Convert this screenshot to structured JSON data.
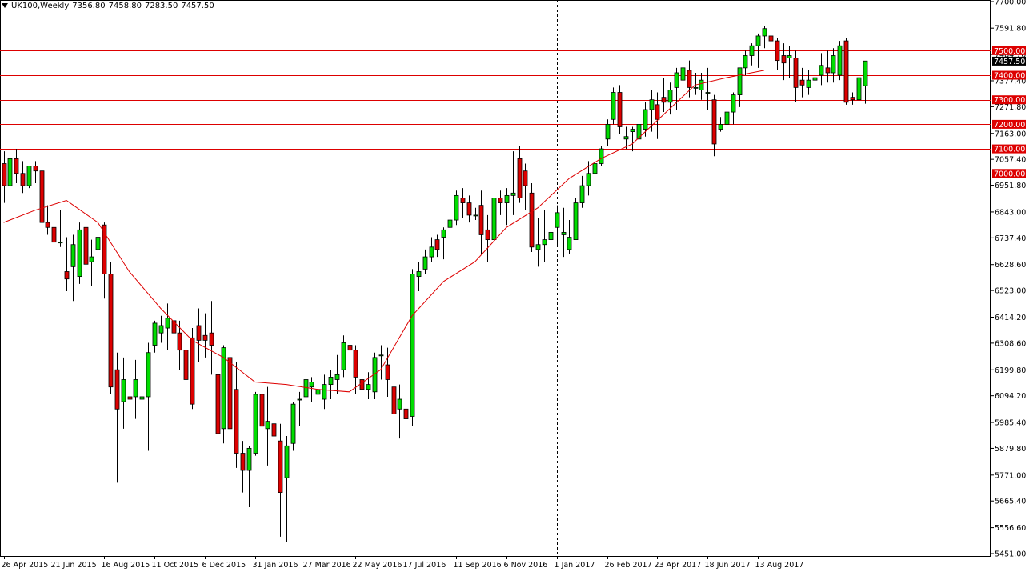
{
  "header": {
    "symbol": "UK100,Weekly",
    "open": "7356.80",
    "high": "7458.80",
    "low": "7283.50",
    "close": "7457.50"
  },
  "colors": {
    "background": "#ffffff",
    "bull": "#00dd00",
    "bear": "#dd0000",
    "wick": "#000000",
    "level_line": "#dd0000",
    "ma_line": "#dd0000",
    "current_price_bg": "#000000"
  },
  "chart_data": {
    "type": "candlestick",
    "timeframe": "Weekly",
    "ylim": [
      5451.0,
      7700.0
    ],
    "y_ticks": [
      "7700.00",
      "7591.80",
      "7484.70",
      "7377.40",
      "7271.80",
      "7163.00",
      "7057.40",
      "6951.80",
      "6843.00",
      "6737.40",
      "6628.60",
      "6523.00",
      "6414.20",
      "6308.60",
      "6199.80",
      "6094.20",
      "5985.40",
      "5879.80",
      "5771.00",
      "5665.40",
      "5556.60",
      "5451.00"
    ],
    "x_labels": [
      {
        "i": 0,
        "text": "26 Apr 2015"
      },
      {
        "i": 8,
        "text": "21 Jun 2015"
      },
      {
        "i": 16,
        "text": "16 Aug 2015"
      },
      {
        "i": 24,
        "text": "11 Oct 2015"
      },
      {
        "i": 32,
        "text": "6 Dec 2015"
      },
      {
        "i": 40,
        "text": "31 Jan 2016"
      },
      {
        "i": 48,
        "text": "27 Mar 2016"
      },
      {
        "i": 56,
        "text": "22 May 2016"
      },
      {
        "i": 64,
        "text": "17 Jul 2016"
      },
      {
        "i": 72,
        "text": "11 Sep 2016"
      },
      {
        "i": 80,
        "text": "6 Nov 2016"
      },
      {
        "i": 88,
        "text": "1 Jan 2017"
      },
      {
        "i": 96,
        "text": "26 Feb 2017"
      },
      {
        "i": 104,
        "text": "23 Apr 2017"
      },
      {
        "i": 112,
        "text": "18 Jun 2017"
      },
      {
        "i": 120,
        "text": "13 Aug 2017"
      }
    ],
    "period_separators": [
      36,
      88
    ],
    "levels": [
      {
        "value": 7500.0,
        "label": "7500.00"
      },
      {
        "value": 7400.0,
        "label": "7400.00"
      },
      {
        "value": 7300.0,
        "label": "7300.00"
      },
      {
        "value": 7200.0,
        "label": "7200.00"
      },
      {
        "value": 7100.0,
        "label": "7100.00"
      },
      {
        "value": 7000.0,
        "label": "7000.00"
      }
    ],
    "current_price": {
      "value": 7457.5,
      "label": "7457.50"
    },
    "moving_average": {
      "points": [
        [
          0,
          6800
        ],
        [
          5,
          6850
        ],
        [
          10,
          6890
        ],
        [
          15,
          6800
        ],
        [
          20,
          6600
        ],
        [
          25,
          6450
        ],
        [
          30,
          6320
        ],
        [
          35,
          6250
        ],
        [
          40,
          6150
        ],
        [
          45,
          6140
        ],
        [
          50,
          6120
        ],
        [
          55,
          6110
        ],
        [
          60,
          6200
        ],
        [
          65,
          6420
        ],
        [
          70,
          6560
        ],
        [
          75,
          6640
        ],
        [
          80,
          6780
        ],
        [
          85,
          6860
        ],
        [
          90,
          6980
        ],
        [
          95,
          7060
        ],
        [
          100,
          7120
        ],
        [
          105,
          7240
        ],
        [
          110,
          7360
        ],
        [
          115,
          7390
        ],
        [
          121,
          7420
        ]
      ]
    },
    "candles": [
      [
        7040,
        7090,
        6880,
        6950
      ],
      [
        6950,
        7080,
        6870,
        7060
      ],
      [
        7060,
        7100,
        6960,
        7000
      ],
      [
        7000,
        7050,
        6920,
        6950
      ],
      [
        6950,
        7030,
        6940,
        7030
      ],
      [
        7030,
        7050,
        6960,
        7010
      ],
      [
        7010,
        7030,
        6750,
        6800
      ],
      [
        6800,
        6870,
        6750,
        6780
      ],
      [
        6780,
        6840,
        6690,
        6720
      ],
      [
        6720,
        6850,
        6700,
        6720
      ],
      [
        6600,
        6740,
        6520,
        6570
      ],
      [
        6620,
        6750,
        6480,
        6710
      ],
      [
        6580,
        6800,
        6550,
        6770
      ],
      [
        6780,
        6840,
        6570,
        6630
      ],
      [
        6640,
        6730,
        6540,
        6660
      ],
      [
        6690,
        6780,
        6550,
        6740
      ],
      [
        6790,
        6800,
        6490,
        6590
      ],
      [
        6590,
        6640,
        6100,
        6130
      ],
      [
        6200,
        6270,
        5740,
        6040
      ],
      [
        6070,
        6250,
        5960,
        6160
      ],
      [
        6090,
        6300,
        5920,
        6080
      ],
      [
        6090,
        6240,
        6000,
        6160
      ],
      [
        6080,
        6250,
        5890,
        6090
      ],
      [
        6090,
        6310,
        5870,
        6270
      ],
      [
        6300,
        6400,
        6270,
        6390
      ],
      [
        6350,
        6420,
        6310,
        6380
      ],
      [
        6370,
        6470,
        6280,
        6410
      ],
      [
        6400,
        6470,
        6320,
        6350
      ],
      [
        6350,
        6400,
        6200,
        6280
      ],
      [
        6280,
        6350,
        6110,
        6160
      ],
      [
        6330,
        6370,
        6040,
        6060
      ],
      [
        6380,
        6450,
        6230,
        6320
      ],
      [
        6340,
        6430,
        6250,
        6320
      ],
      [
        6350,
        6480,
        6180,
        6300
      ],
      [
        6180,
        6230,
        5900,
        5940
      ],
      [
        5960,
        6300,
        5900,
        6290
      ],
      [
        6250,
        6300,
        5870,
        5960
      ],
      [
        6120,
        6230,
        5800,
        5860
      ],
      [
        5860,
        5910,
        5700,
        5790
      ],
      [
        5790,
        5890,
        5640,
        5880
      ],
      [
        5860,
        6110,
        5850,
        6100
      ],
      [
        6100,
        6110,
        5890,
        5970
      ],
      [
        5960,
        6130,
        5810,
        5990
      ],
      [
        5980,
        6060,
        5870,
        5930
      ],
      [
        5910,
        5980,
        5520,
        5700
      ],
      [
        5760,
        5930,
        5500,
        5890
      ],
      [
        5900,
        6070,
        5870,
        6060
      ],
      [
        6080,
        6110,
        5970,
        6080
      ],
      [
        6090,
        6180,
        6060,
        6160
      ],
      [
        6130,
        6170,
        6070,
        6150
      ],
      [
        6100,
        6190,
        6080,
        6120
      ],
      [
        6080,
        6180,
        6040,
        6140
      ],
      [
        6140,
        6200,
        6080,
        6170
      ],
      [
        6160,
        6260,
        6100,
        6180
      ],
      [
        6200,
        6340,
        6170,
        6310
      ],
      [
        6300,
        6380,
        6150,
        6280
      ],
      [
        6280,
        6300,
        6100,
        6170
      ],
      [
        6160,
        6230,
        6080,
        6120
      ],
      [
        6120,
        6190,
        6080,
        6140
      ],
      [
        6110,
        6270,
        6080,
        6250
      ],
      [
        6260,
        6300,
        6160,
        6260
      ],
      [
        6220,
        6290,
        6090,
        6160
      ],
      [
        6130,
        6170,
        5950,
        6020
      ],
      [
        6040,
        6140,
        5920,
        6080
      ],
      [
        6040,
        6210,
        5940,
        6000
      ],
      [
        6010,
        6610,
        5970,
        6590
      ],
      [
        6580,
        6640,
        6520,
        6600
      ],
      [
        6610,
        6690,
        6590,
        6660
      ],
      [
        6660,
        6740,
        6640,
        6700
      ],
      [
        6730,
        6750,
        6660,
        6690
      ],
      [
        6740,
        6780,
        6650,
        6770
      ],
      [
        6780,
        6850,
        6730,
        6810
      ],
      [
        6810,
        6930,
        6790,
        6910
      ],
      [
        6900,
        6940,
        6820,
        6880
      ],
      [
        6880,
        6910,
        6800,
        6830
      ],
      [
        6830,
        6860,
        6810,
        6830
      ],
      [
        6870,
        6930,
        6670,
        6750
      ],
      [
        6770,
        6830,
        6640,
        6730
      ],
      [
        6730,
        6900,
        6670,
        6900
      ],
      [
        6900,
        6930,
        6830,
        6880
      ],
      [
        6880,
        6940,
        6790,
        6910
      ],
      [
        6910,
        7090,
        6830,
        6920
      ],
      [
        7060,
        7110,
        6880,
        6900
      ],
      [
        7010,
        7040,
        6850,
        6950
      ],
      [
        6920,
        6960,
        6680,
        6700
      ],
      [
        6690,
        6820,
        6620,
        6710
      ],
      [
        6710,
        6850,
        6640,
        6730
      ],
      [
        6730,
        6790,
        6630,
        6760
      ],
      [
        6780,
        6870,
        6700,
        6840
      ],
      [
        6750,
        6860,
        6660,
        6760
      ],
      [
        6690,
        6810,
        6670,
        6740
      ],
      [
        6730,
        6900,
        6730,
        6880
      ],
      [
        6880,
        6990,
        6860,
        6950
      ],
      [
        6950,
        7050,
        6910,
        7000
      ],
      [
        7000,
        7060,
        6960,
        7040
      ],
      [
        7040,
        7110,
        7030,
        7100
      ],
      [
        7140,
        7220,
        7110,
        7200
      ],
      [
        7220,
        7350,
        7200,
        7330
      ],
      [
        7330,
        7360,
        7160,
        7190
      ],
      [
        7140,
        7190,
        7100,
        7150
      ],
      [
        7170,
        7190,
        7090,
        7180
      ],
      [
        7140,
        7210,
        7130,
        7200
      ],
      [
        7180,
        7290,
        7150,
        7260
      ],
      [
        7260,
        7340,
        7170,
        7300
      ],
      [
        7280,
        7330,
        7140,
        7220
      ],
      [
        7310,
        7390,
        7250,
        7290
      ],
      [
        7290,
        7370,
        7240,
        7340
      ],
      [
        7350,
        7430,
        7260,
        7410
      ],
      [
        7380,
        7470,
        7300,
        7430
      ],
      [
        7420,
        7460,
        7310,
        7350
      ],
      [
        7350,
        7410,
        7320,
        7350
      ],
      [
        7340,
        7410,
        7300,
        7380
      ],
      [
        7330,
        7430,
        7260,
        7330
      ],
      [
        7300,
        7320,
        7070,
        7120
      ],
      [
        7180,
        7230,
        7170,
        7200
      ],
      [
        7200,
        7280,
        7190,
        7250
      ],
      [
        7250,
        7330,
        7200,
        7320
      ],
      [
        7320,
        7430,
        7270,
        7430
      ],
      [
        7430,
        7500,
        7400,
        7480
      ],
      [
        7480,
        7530,
        7440,
        7520
      ],
      [
        7520,
        7570,
        7430,
        7560
      ],
      [
        7560,
        7600,
        7510,
        7590
      ],
      [
        7560,
        7570,
        7490,
        7540
      ],
      [
        7540,
        7550,
        7420,
        7460
      ],
      [
        7480,
        7530,
        7380,
        7450
      ],
      [
        7470,
        7520,
        7390,
        7480
      ],
      [
        7470,
        7500,
        7290,
        7350
      ],
      [
        7380,
        7430,
        7310,
        7360
      ],
      [
        7350,
        7420,
        7320,
        7380
      ],
      [
        7380,
        7430,
        7310,
        7390
      ],
      [
        7400,
        7490,
        7360,
        7440
      ],
      [
        7430,
        7500,
        7370,
        7410
      ],
      [
        7410,
        7510,
        7370,
        7480
      ],
      [
        7400,
        7540,
        7380,
        7520
      ],
      [
        7540,
        7550,
        7280,
        7290
      ],
      [
        7310,
        7330,
        7280,
        7300
      ],
      [
        7300,
        7420,
        7300,
        7390
      ],
      [
        7357,
        7459,
        7284,
        7458
      ]
    ]
  }
}
